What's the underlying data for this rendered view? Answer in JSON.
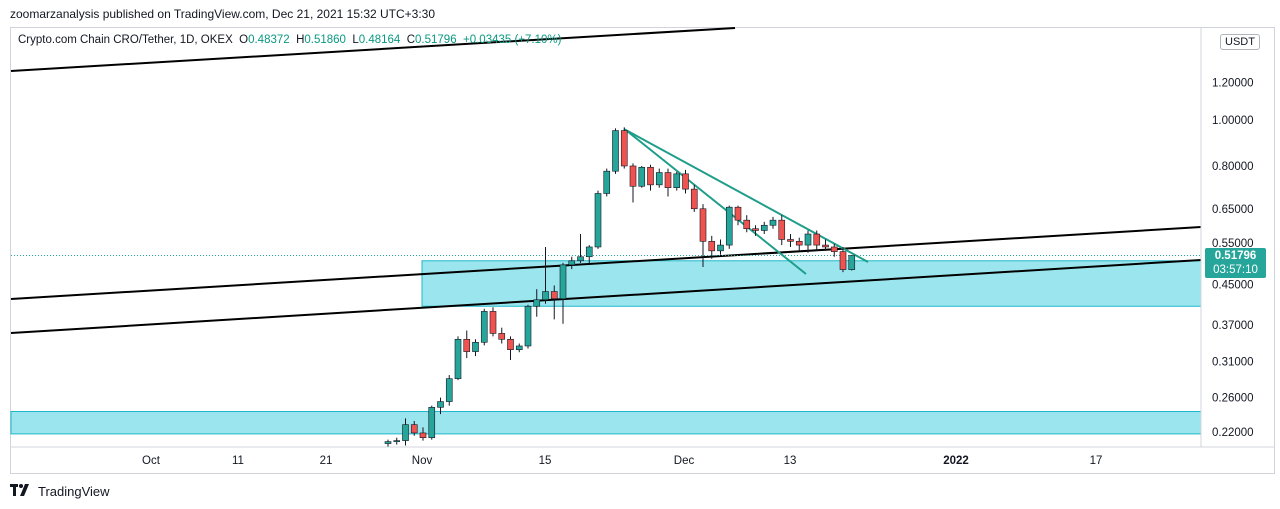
{
  "header": {
    "published": "zoomarzanalysis published on TradingView.com, Dec 21, 2021 15:32 UTC+3:30"
  },
  "legend": {
    "symbol": "Crypto.com Chain CRO/Tether, 1D, OKEX",
    "o_label": "O",
    "o": "0.48372",
    "h_label": "H",
    "h": "0.51860",
    "l_label": "L",
    "l": "0.48164",
    "c_label": "C",
    "c": "0.51796",
    "change": "+0.03435 (+7.10%)"
  },
  "currency": "USDT",
  "last_price": {
    "price": "0.51796",
    "countdown": "03:57:10"
  },
  "footer": {
    "logo_text": "TradingView"
  },
  "colors": {
    "up": "#26a69a",
    "down": "#ef5350",
    "zone": "#9be5ee",
    "zone_border": "#1eb8c8",
    "trendline": "#000000",
    "wedge": "#1e9e8a"
  },
  "chart_data": {
    "type": "candlestick",
    "title": "Crypto.com Chain CRO/Tether, 1D, OKEX",
    "y_scale": "log",
    "y_ticks": [
      "1.20000",
      "1.00000",
      "0.80000",
      "0.65000",
      "0.55000",
      "0.45000",
      "0.37000",
      "0.31000",
      "0.26000",
      "0.22000"
    ],
    "x_ticks": [
      "Oct",
      "11",
      "21",
      "Nov",
      "15",
      "Dec",
      "13",
      "2022",
      "17"
    ],
    "candles": [
      {
        "date": "2021-10-29",
        "o": 0.208,
        "h": 0.212,
        "l": 0.205,
        "c": 0.21
      },
      {
        "date": "2021-10-30",
        "o": 0.21,
        "h": 0.214,
        "l": 0.207,
        "c": 0.211
      },
      {
        "date": "2021-10-31",
        "o": 0.211,
        "h": 0.235,
        "l": 0.206,
        "c": 0.228
      },
      {
        "date": "2021-11-01",
        "o": 0.228,
        "h": 0.232,
        "l": 0.216,
        "c": 0.219
      },
      {
        "date": "2021-11-02",
        "o": 0.219,
        "h": 0.225,
        "l": 0.211,
        "c": 0.214
      },
      {
        "date": "2021-11-03",
        "o": 0.214,
        "h": 0.25,
        "l": 0.212,
        "c": 0.248
      },
      {
        "date": "2021-11-04",
        "o": 0.248,
        "h": 0.26,
        "l": 0.24,
        "c": 0.255
      },
      {
        "date": "2021-11-05",
        "o": 0.255,
        "h": 0.29,
        "l": 0.25,
        "c": 0.285
      },
      {
        "date": "2021-11-06",
        "o": 0.285,
        "h": 0.35,
        "l": 0.283,
        "c": 0.345
      },
      {
        "date": "2021-11-07",
        "o": 0.345,
        "h": 0.36,
        "l": 0.315,
        "c": 0.325
      },
      {
        "date": "2021-11-08",
        "o": 0.325,
        "h": 0.345,
        "l": 0.318,
        "c": 0.34
      },
      {
        "date": "2021-11-09",
        "o": 0.34,
        "h": 0.4,
        "l": 0.335,
        "c": 0.395
      },
      {
        "date": "2021-11-10",
        "o": 0.395,
        "h": 0.403,
        "l": 0.35,
        "c": 0.355
      },
      {
        "date": "2021-11-11",
        "o": 0.355,
        "h": 0.365,
        "l": 0.338,
        "c": 0.345
      },
      {
        "date": "2021-11-12",
        "o": 0.345,
        "h": 0.35,
        "l": 0.312,
        "c": 0.328
      },
      {
        "date": "2021-11-13",
        "o": 0.328,
        "h": 0.338,
        "l": 0.324,
        "c": 0.334
      },
      {
        "date": "2021-11-14",
        "o": 0.334,
        "h": 0.408,
        "l": 0.33,
        "c": 0.405
      },
      {
        "date": "2021-11-15",
        "o": 0.405,
        "h": 0.44,
        "l": 0.385,
        "c": 0.418
      },
      {
        "date": "2021-11-16",
        "o": 0.418,
        "h": 0.54,
        "l": 0.41,
        "c": 0.435
      },
      {
        "date": "2021-11-17",
        "o": 0.435,
        "h": 0.448,
        "l": 0.38,
        "c": 0.42
      },
      {
        "date": "2021-11-18",
        "o": 0.42,
        "h": 0.5,
        "l": 0.372,
        "c": 0.495
      },
      {
        "date": "2021-11-19",
        "o": 0.495,
        "h": 0.515,
        "l": 0.485,
        "c": 0.505
      },
      {
        "date": "2021-11-20",
        "o": 0.505,
        "h": 0.575,
        "l": 0.5,
        "c": 0.515
      },
      {
        "date": "2021-11-21",
        "o": 0.515,
        "h": 0.545,
        "l": 0.498,
        "c": 0.54
      },
      {
        "date": "2021-11-22",
        "o": 0.54,
        "h": 0.71,
        "l": 0.535,
        "c": 0.7
      },
      {
        "date": "2021-11-23",
        "o": 0.7,
        "h": 0.79,
        "l": 0.69,
        "c": 0.78
      },
      {
        "date": "2021-11-24",
        "o": 0.78,
        "h": 0.96,
        "l": 0.77,
        "c": 0.95
      },
      {
        "date": "2021-11-25",
        "o": 0.95,
        "h": 0.965,
        "l": 0.79,
        "c": 0.8
      },
      {
        "date": "2021-11-26",
        "o": 0.8,
        "h": 0.81,
        "l": 0.67,
        "c": 0.725
      },
      {
        "date": "2021-11-27",
        "o": 0.725,
        "h": 0.8,
        "l": 0.72,
        "c": 0.795
      },
      {
        "date": "2021-11-28",
        "o": 0.795,
        "h": 0.805,
        "l": 0.71,
        "c": 0.73
      },
      {
        "date": "2021-11-29",
        "o": 0.73,
        "h": 0.79,
        "l": 0.72,
        "c": 0.775
      },
      {
        "date": "2021-11-30",
        "o": 0.775,
        "h": 0.79,
        "l": 0.69,
        "c": 0.72
      },
      {
        "date": "2021-12-01",
        "o": 0.72,
        "h": 0.778,
        "l": 0.71,
        "c": 0.77
      },
      {
        "date": "2021-12-02",
        "o": 0.77,
        "h": 0.785,
        "l": 0.7,
        "c": 0.715
      },
      {
        "date": "2021-12-03",
        "o": 0.715,
        "h": 0.73,
        "l": 0.64,
        "c": 0.65
      },
      {
        "date": "2021-12-04",
        "o": 0.65,
        "h": 0.665,
        "l": 0.49,
        "c": 0.555
      },
      {
        "date": "2021-12-05",
        "o": 0.555,
        "h": 0.57,
        "l": 0.51,
        "c": 0.53
      },
      {
        "date": "2021-12-06",
        "o": 0.53,
        "h": 0.56,
        "l": 0.52,
        "c": 0.545
      },
      {
        "date": "2021-12-07",
        "o": 0.545,
        "h": 0.66,
        "l": 0.535,
        "c": 0.655
      },
      {
        "date": "2021-12-08",
        "o": 0.655,
        "h": 0.66,
        "l": 0.6,
        "c": 0.615
      },
      {
        "date": "2021-12-09",
        "o": 0.615,
        "h": 0.63,
        "l": 0.58,
        "c": 0.59
      },
      {
        "date": "2021-12-10",
        "o": 0.59,
        "h": 0.6,
        "l": 0.57,
        "c": 0.585
      },
      {
        "date": "2021-12-11",
        "o": 0.585,
        "h": 0.61,
        "l": 0.575,
        "c": 0.6
      },
      {
        "date": "2021-12-12",
        "o": 0.6,
        "h": 0.625,
        "l": 0.59,
        "c": 0.615
      },
      {
        "date": "2021-12-13",
        "o": 0.615,
        "h": 0.63,
        "l": 0.545,
        "c": 0.56
      },
      {
        "date": "2021-12-14",
        "o": 0.56,
        "h": 0.575,
        "l": 0.54,
        "c": 0.555
      },
      {
        "date": "2021-12-15",
        "o": 0.555,
        "h": 0.565,
        "l": 0.53,
        "c": 0.545
      },
      {
        "date": "2021-12-16",
        "o": 0.545,
        "h": 0.585,
        "l": 0.525,
        "c": 0.575
      },
      {
        "date": "2021-12-17",
        "o": 0.575,
        "h": 0.585,
        "l": 0.53,
        "c": 0.545
      },
      {
        "date": "2021-12-18",
        "o": 0.545,
        "h": 0.56,
        "l": 0.53,
        "c": 0.54
      },
      {
        "date": "2021-12-19",
        "o": 0.54,
        "h": 0.548,
        "l": 0.515,
        "c": 0.528
      },
      {
        "date": "2021-12-20",
        "o": 0.528,
        "h": 0.54,
        "l": 0.478,
        "c": 0.484
      },
      {
        "date": "2021-12-21",
        "o": 0.48372,
        "h": 0.5186,
        "l": 0.48164,
        "c": 0.51796
      }
    ]
  }
}
